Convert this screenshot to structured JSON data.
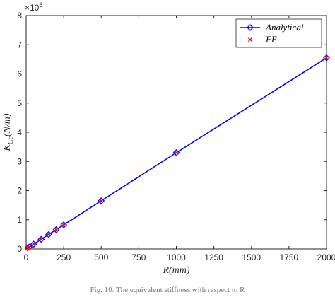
{
  "chart_data": {
    "type": "line",
    "xlabel": "R(mm)",
    "ylabel_base": "K",
    "ylabel_sub": "Cc",
    "ylabel_units": "(N/m)",
    "y_multiplier_label": "×10",
    "y_multiplier_exp": "6",
    "xlim": [
      0,
      2000
    ],
    "ylim": [
      0,
      8000000
    ],
    "x_ticks": [
      "0",
      "250",
      "500",
      "750",
      "1000",
      "1250",
      "1500",
      "1750",
      "2000"
    ],
    "y_ticks": [
      "0",
      "1",
      "2",
      "3",
      "4",
      "5",
      "6",
      "7",
      "8"
    ],
    "grid": false,
    "legend_position": "top-right",
    "series": [
      {
        "name": "Analytical",
        "style": "line-with-diamond-markers",
        "color": "#0000ff",
        "x": [
          10,
          20,
          50,
          100,
          150,
          200,
          250,
          500,
          1000,
          2000
        ],
        "y": [
          33000,
          66000,
          165000,
          330000,
          495000,
          660000,
          825000,
          1650000,
          3300000,
          6550000
        ]
      },
      {
        "name": "FE",
        "style": "x-markers",
        "color": "#ff0000",
        "x": [
          10,
          20,
          50,
          100,
          150,
          200,
          250,
          500,
          1000,
          2000
        ],
        "y": [
          33000,
          66000,
          165000,
          330000,
          495000,
          660000,
          825000,
          1650000,
          3300000,
          6550000
        ]
      }
    ]
  },
  "caption": "Fig. 10. The equivalent stiffness with respect to R"
}
